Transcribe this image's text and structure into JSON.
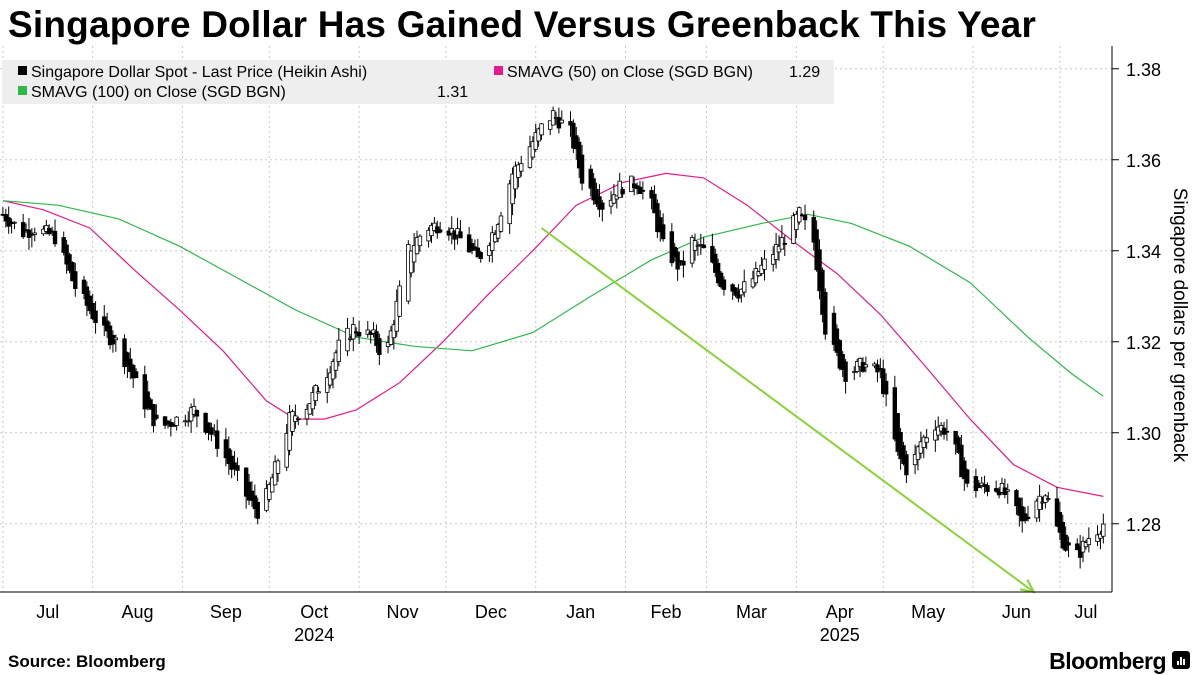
{
  "title": "Singapore Dollar Has Gained Versus Greenback This Year",
  "footer": {
    "source": "Source: Bloomberg",
    "brand": "Bloomberg",
    "brand_icon": "bloomberg-terminal-icon"
  },
  "chart_data": {
    "type": "candlestick",
    "ylabel": "Singapore dollars per greenback",
    "y_axis_side": "right",
    "ylim": [
      1.265,
      1.385
    ],
    "yticks": [
      1.28,
      1.3,
      1.32,
      1.34,
      1.36,
      1.38
    ],
    "ytick_labels": [
      "1.28",
      "1.30",
      "1.32",
      "1.34",
      "1.36",
      "1.38"
    ],
    "grid": "dotted",
    "legend_position": "top-left",
    "months": [
      "Jul",
      "Aug",
      "Sep",
      "Oct",
      "Nov",
      "Dec",
      "Jan",
      "Feb",
      "Mar",
      "Apr",
      "May",
      "Jun",
      "Jul"
    ],
    "years": [
      {
        "label": "2024",
        "under": "Oct"
      },
      {
        "label": "2025",
        "under": "Apr"
      }
    ],
    "legend": [
      {
        "name": "Singapore Dollar Spot - Last Price (Heikin Ashi)",
        "color": "#000000",
        "value": ""
      },
      {
        "name": "SMAVG (50)  on Close (SGD BGN)",
        "color": "#e8198b",
        "value": "1.29"
      },
      {
        "name": "SMAVG (100)  on Close (SGD BGN)",
        "color": "#2db84a",
        "value": "1.31"
      }
    ],
    "series": [
      {
        "name": "Singapore Dollar Spot - Last Price (Heikin Ashi)",
        "keypoints": [
          [
            "2024-07-01",
            1.348
          ],
          [
            "2024-07-08",
            1.344
          ],
          [
            "2024-07-12",
            1.345
          ],
          [
            "2024-07-19",
            1.343
          ],
          [
            "2024-07-26",
            1.332
          ],
          [
            "2024-08-05",
            1.322
          ],
          [
            "2024-08-09",
            1.32
          ],
          [
            "2024-08-13",
            1.315
          ],
          [
            "2024-08-20",
            1.305
          ],
          [
            "2024-08-24",
            1.301
          ],
          [
            "2024-08-30",
            1.303
          ],
          [
            "2024-09-05",
            1.305
          ],
          [
            "2024-09-12",
            1.299
          ],
          [
            "2024-09-20",
            1.29
          ],
          [
            "2024-09-24",
            1.285
          ],
          [
            "2024-09-28",
            1.282
          ],
          [
            "2024-10-03",
            1.292
          ],
          [
            "2024-10-08",
            1.303
          ],
          [
            "2024-10-14",
            1.306
          ],
          [
            "2024-10-20",
            1.312
          ],
          [
            "2024-10-25",
            1.319
          ],
          [
            "2024-10-30",
            1.323
          ],
          [
            "2024-11-06",
            1.321
          ],
          [
            "2024-11-10",
            1.316
          ],
          [
            "2024-11-14",
            1.328
          ],
          [
            "2024-11-18",
            1.34
          ],
          [
            "2024-11-24",
            1.345
          ],
          [
            "2024-11-30",
            1.346
          ],
          [
            "2024-12-07",
            1.342
          ],
          [
            "2024-12-12",
            1.338
          ],
          [
            "2024-12-18",
            1.345
          ],
          [
            "2024-12-24",
            1.357
          ],
          [
            "2024-12-30",
            1.363
          ],
          [
            "2025-01-04",
            1.368
          ],
          [
            "2025-01-07",
            1.37
          ],
          [
            "2025-01-10",
            1.368
          ],
          [
            "2025-01-13",
            1.366
          ],
          [
            "2025-01-17",
            1.356
          ],
          [
            "2025-01-24",
            1.35
          ],
          [
            "2025-01-30",
            1.354
          ],
          [
            "2025-02-05",
            1.355
          ],
          [
            "2025-02-10",
            1.35
          ],
          [
            "2025-02-14",
            1.341
          ],
          [
            "2025-02-20",
            1.336
          ],
          [
            "2025-02-24",
            1.342
          ],
          [
            "2025-02-28",
            1.34
          ],
          [
            "2025-03-06",
            1.333
          ],
          [
            "2025-03-12",
            1.331
          ],
          [
            "2025-03-16",
            1.333
          ],
          [
            "2025-03-22",
            1.338
          ],
          [
            "2025-03-28",
            1.343
          ],
          [
            "2025-04-02",
            1.348
          ],
          [
            "2025-04-07",
            1.342
          ],
          [
            "2025-04-11",
            1.323
          ],
          [
            "2025-04-14",
            1.318
          ],
          [
            "2025-04-18",
            1.313
          ],
          [
            "2025-04-24",
            1.315
          ],
          [
            "2025-04-30",
            1.313
          ],
          [
            "2025-05-06",
            1.295
          ],
          [
            "2025-05-10",
            1.291
          ],
          [
            "2025-05-14",
            1.298
          ],
          [
            "2025-05-19",
            1.302
          ],
          [
            "2025-05-24",
            1.3
          ],
          [
            "2025-05-30",
            1.288
          ],
          [
            "2025-06-04",
            1.288
          ],
          [
            "2025-06-10",
            1.288
          ],
          [
            "2025-06-14",
            1.285
          ],
          [
            "2025-06-18",
            1.28
          ],
          [
            "2025-06-22",
            1.285
          ],
          [
            "2025-06-26",
            1.287
          ],
          [
            "2025-06-30",
            1.279
          ],
          [
            "2025-07-03",
            1.275
          ],
          [
            "2025-07-07",
            1.273
          ],
          [
            "2025-07-11",
            1.277
          ],
          [
            "2025-07-16",
            1.28
          ]
        ]
      },
      {
        "name": "SMAVG (50)  on Close (SGD BGN)",
        "keypoints": [
          [
            "2024-07-01",
            1.351
          ],
          [
            "2024-07-15",
            1.349
          ],
          [
            "2024-07-31",
            1.345
          ],
          [
            "2024-08-15",
            1.336
          ],
          [
            "2024-08-31",
            1.327
          ],
          [
            "2024-09-15",
            1.318
          ],
          [
            "2024-09-30",
            1.307
          ],
          [
            "2024-10-10",
            1.303
          ],
          [
            "2024-10-20",
            1.303
          ],
          [
            "2024-10-31",
            1.305
          ],
          [
            "2024-11-15",
            1.311
          ],
          [
            "2024-11-30",
            1.32
          ],
          [
            "2024-12-15",
            1.33
          ],
          [
            "2024-12-31",
            1.34
          ],
          [
            "2025-01-15",
            1.35
          ],
          [
            "2025-01-31",
            1.355
          ],
          [
            "2025-02-15",
            1.357
          ],
          [
            "2025-02-28",
            1.356
          ],
          [
            "2025-03-15",
            1.35
          ],
          [
            "2025-03-31",
            1.342
          ],
          [
            "2025-04-15",
            1.335
          ],
          [
            "2025-04-30",
            1.326
          ],
          [
            "2025-05-15",
            1.315
          ],
          [
            "2025-05-31",
            1.303
          ],
          [
            "2025-06-15",
            1.293
          ],
          [
            "2025-06-30",
            1.288
          ],
          [
            "2025-07-16",
            1.286
          ]
        ]
      },
      {
        "name": "SMAVG (100)  on Close (SGD BGN)",
        "keypoints": [
          [
            "2024-07-01",
            1.351
          ],
          [
            "2024-07-20",
            1.35
          ],
          [
            "2024-08-10",
            1.347
          ],
          [
            "2024-08-31",
            1.341
          ],
          [
            "2024-09-20",
            1.334
          ],
          [
            "2024-10-10",
            1.327
          ],
          [
            "2024-10-31",
            1.321
          ],
          [
            "2024-11-20",
            1.319
          ],
          [
            "2024-12-10",
            1.318
          ],
          [
            "2024-12-31",
            1.322
          ],
          [
            "2025-01-20",
            1.33
          ],
          [
            "2025-02-10",
            1.338
          ],
          [
            "2025-02-28",
            1.343
          ],
          [
            "2025-03-20",
            1.346
          ],
          [
            "2025-04-05",
            1.348
          ],
          [
            "2025-04-20",
            1.346
          ],
          [
            "2025-05-10",
            1.341
          ],
          [
            "2025-05-31",
            1.333
          ],
          [
            "2025-06-20",
            1.321
          ],
          [
            "2025-07-05",
            1.313
          ],
          [
            "2025-07-16",
            1.308
          ]
        ]
      }
    ],
    "annotations": [
      {
        "type": "arrow",
        "color": "#8ad23a",
        "from": [
          "2025-01-03",
          1.345
        ],
        "to": [
          "2025-06-22",
          1.265
        ]
      }
    ]
  }
}
